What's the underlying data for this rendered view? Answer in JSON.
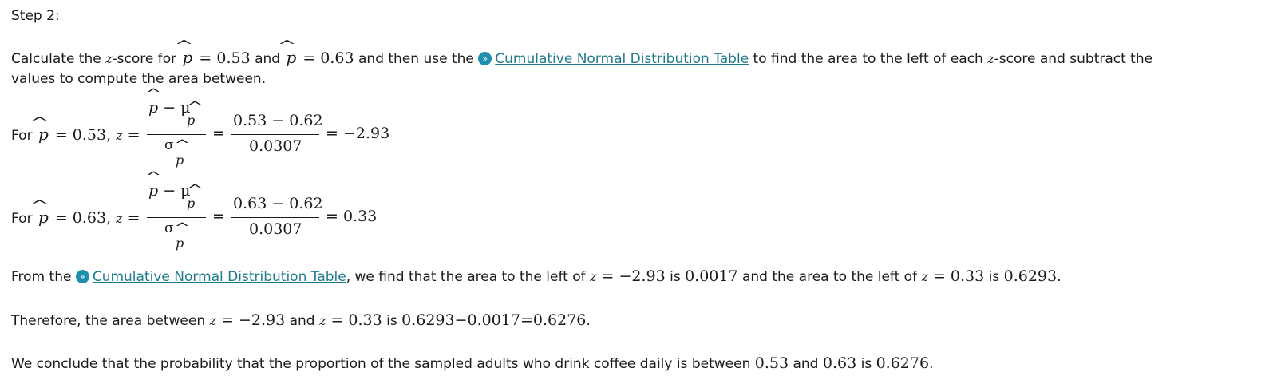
{
  "step_title": "Step 2:",
  "intro": {
    "part1": "Calculate the ",
    "z": "z",
    "part2": "-score for ",
    "phat": "p",
    "eq1": " = 0.53",
    "and": " and ",
    "eq2": " = 0.63",
    "part3": " and then use the ",
    "link_label": "Cumulative Normal Distribution Table",
    "part4": " to find the area to the left of each ",
    "part5": "-score and subtract the",
    "line2": "values to compute the area between."
  },
  "calc1": {
    "for_label": "For ",
    "phat_value": " = 0.53, ",
    "z": "z",
    "eq": " =",
    "num_symbolic": "p − μ",
    "den_symbolic": "σ",
    "num_numeric": "0.53 − 0.62",
    "den_numeric": "0.0307",
    "eq2": "=",
    "result": "= −2.93"
  },
  "calc2": {
    "for_label": "For ",
    "phat_value": " = 0.63, ",
    "z": "z",
    "eq": " =",
    "num_symbolic": "p − μ",
    "den_symbolic": "σ",
    "num_numeric": "0.63 − 0.62",
    "den_numeric": "0.0307",
    "eq2": "=",
    "result": "= 0.33"
  },
  "table_result": {
    "part1": "From the ",
    "link_label": "Cumulative Normal Distribution Table",
    "part2": ", we find that the area to the left of ",
    "z": "z",
    "eq1": " = −2.93",
    "part3": " is ",
    "val1": "0.0017",
    "part4": " and the area to the left of ",
    "eq2": " = 0.33",
    "part5": " is ",
    "val2": "0.6293",
    "end": "."
  },
  "therefore": {
    "part1": "Therefore, the area between ",
    "z": "z",
    "eq1": " = −2.93",
    "and": " and ",
    "eq2": " = 0.33",
    "is": " is ",
    "calc": "0.6293−0.0017=0.6276",
    "end": "."
  },
  "conclusion": {
    "part1": "We conclude that the probability that the proportion of the sampled adults who drink coffee daily is between ",
    "v1": "0.53",
    "and": " and ",
    "v2": "0.63",
    "is": " is ",
    "v3": "0.6276",
    "end": "."
  },
  "icons": {
    "table_icon": "chevron-circle-icon"
  },
  "colors": {
    "link": "#1f7a8c",
    "icon": "#1f8fb0"
  }
}
